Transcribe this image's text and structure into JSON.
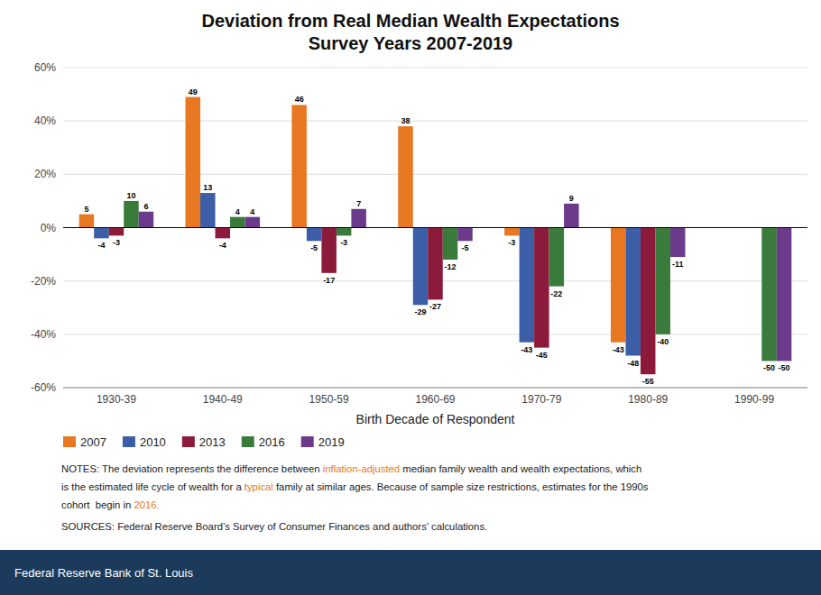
{
  "chart_data": {
    "type": "bar",
    "title": "Deviation from Real Median Wealth Expectations",
    "subtitle": "Survey Years 2007-2019",
    "x_label": "Birth Decade of Respondent",
    "categories": [
      "1930-39",
      "1940-49",
      "1950-59",
      "1960-69",
      "1970-79",
      "1980-89",
      "1990-99"
    ],
    "series": [
      {
        "name": "2007",
        "color": "#E87722",
        "values": [
          5,
          49,
          46,
          38,
          -3,
          -43,
          null
        ]
      },
      {
        "name": "2010",
        "color": "#3B5EA6",
        "values": [
          -4,
          13,
          -5,
          -29,
          -43,
          -48,
          null
        ]
      },
      {
        "name": "2013",
        "color": "#8B1A3B",
        "values": [
          -3,
          -4,
          -17,
          -27,
          -45,
          -55,
          null
        ]
      },
      {
        "name": "2016",
        "color": "#3A7A3A",
        "values": [
          10,
          4,
          -3,
          -12,
          -22,
          -40,
          -50
        ]
      },
      {
        "name": "2019",
        "color": "#6B3A8A",
        "values": [
          6,
          4,
          7,
          -5,
          9,
          -11,
          -50
        ]
      }
    ],
    "ylim": [
      -60,
      60
    ],
    "yticks": [
      {
        "value": -60,
        "label": "-60%"
      },
      {
        "value": -40,
        "label": "-40%"
      },
      {
        "value": -20,
        "label": "-20%"
      },
      {
        "value": 0,
        "label": "0%"
      },
      {
        "value": 20,
        "label": "20%"
      },
      {
        "value": 40,
        "label": "40%"
      },
      {
        "value": 60,
        "label": "60%"
      }
    ],
    "grid": true,
    "data_labels": true,
    "legend": "bottom",
    "annotations": [
      [
        {
          "text": "NOTES: The deviation represents the difference between "
        },
        {
          "text": "inflation-adjusted",
          "color": "#E87722"
        },
        {
          "text": " median family wealth and wealth expectations, which"
        }
      ],
      [
        {
          "text": "is the estimated life cycle of wealth for a "
        },
        {
          "text": "typical",
          "color": "#E87722"
        },
        {
          "text": " family at similar ages. Because of sample size restrictions, estimates for the 1990s"
        }
      ],
      [
        {
          "text": "cohort  begin in "
        },
        {
          "text": "2016.",
          "color": "#E87722"
        }
      ],
      [
        {
          "text": "SOURCES: Federal Reserve Board’s Survey of Consumer Finances and authors’ calculations."
        }
      ]
    ],
    "footer": {
      "text": "Federal Reserve Bank of St. Louis",
      "color": "#1B3A5C"
    }
  }
}
